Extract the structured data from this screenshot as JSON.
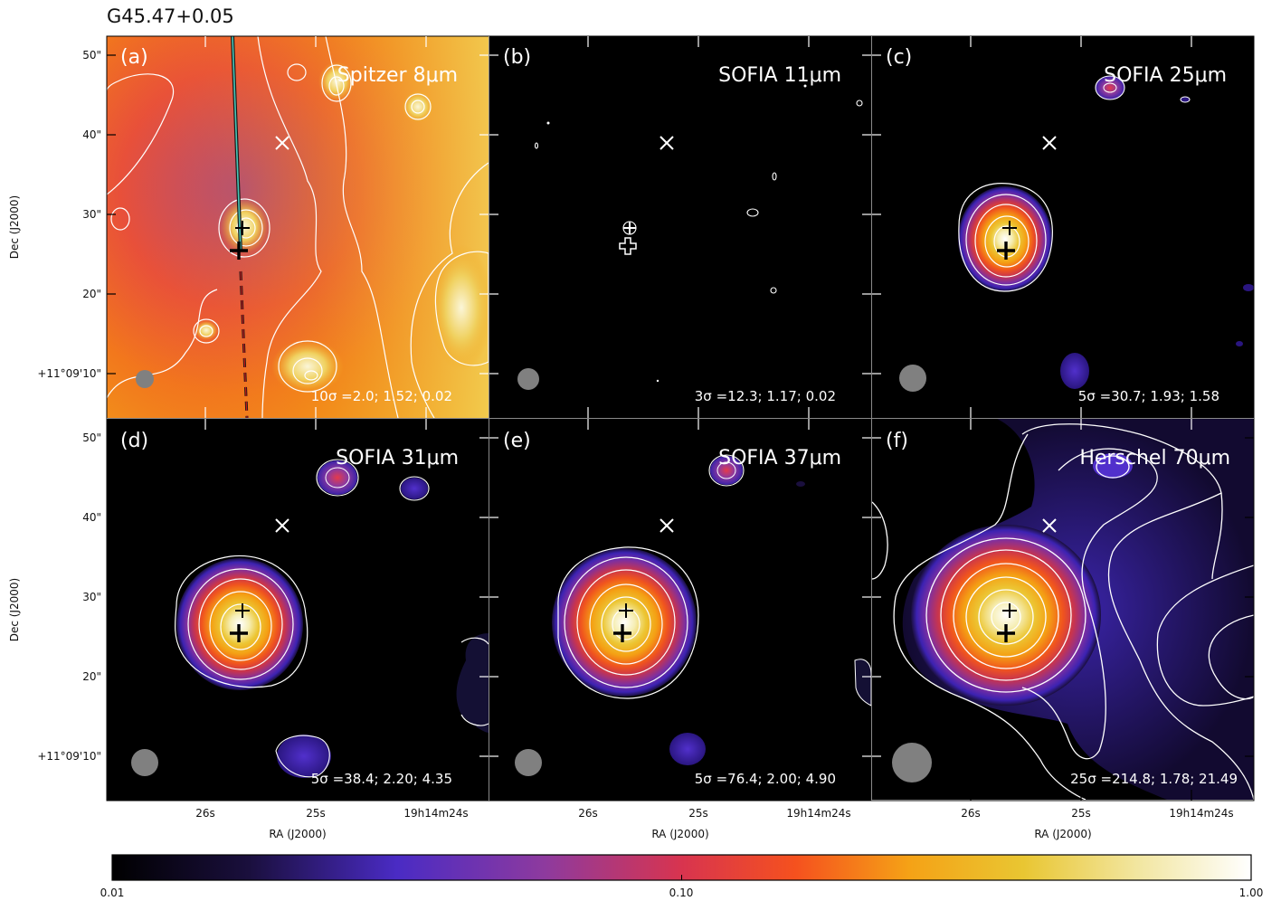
{
  "figure": {
    "title": "G45.47+0.05",
    "colorbar": {
      "min": "0.01",
      "mid": "0.10",
      "max": "1.00"
    },
    "colorbar_stops": [
      "#000000",
      "#1a0f3d",
      "#4a2bc4",
      "#8e3a9e",
      "#d8344f",
      "#f5511e",
      "#f5a216",
      "#e9c632",
      "#f2e6a0",
      "#ffffff"
    ],
    "axes": {
      "ra_label": "RA (J2000)",
      "dec_label": "Dec (J2000)",
      "ra_ticks": [
        "26s",
        "25s",
        "19h14m24s"
      ],
      "dec_ticks": [
        "50\"",
        "40\"",
        "30\"",
        "20\"",
        "+11°09'10\""
      ]
    },
    "panels": [
      {
        "tag": "(a)",
        "name": "Spitzer 8μm",
        "levels": "10σ =2.0; 1.52; 0.02"
      },
      {
        "tag": "(b)",
        "name": "SOFIA 11μm",
        "levels": "3σ =12.3; 1.17; 0.02"
      },
      {
        "tag": "(c)",
        "name": "SOFIA 25μm",
        "levels": "5σ =30.7; 1.93; 1.58"
      },
      {
        "tag": "(d)",
        "name": "SOFIA 31μm",
        "levels": "5σ =38.4; 2.20; 4.35"
      },
      {
        "tag": "(e)",
        "name": "SOFIA 37μm",
        "levels": "5σ =76.4; 2.00; 4.90"
      },
      {
        "tag": "(f)",
        "name": "Herschel 70μm",
        "levels": "25σ =214.8; 1.78; 21.49"
      }
    ]
  }
}
